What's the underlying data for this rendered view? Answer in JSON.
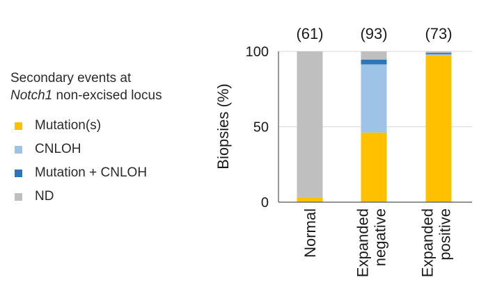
{
  "legend": {
    "title_line1": "Secondary events at",
    "title_gene": "Notch1",
    "title_rest": " non-excised locus",
    "items": [
      {
        "label": "Mutation(s)",
        "color": "#FFC000"
      },
      {
        "label": "CNLOH",
        "color": "#9DC3E6"
      },
      {
        "label": "Mutation + CNLOH",
        "color": "#2E75B6"
      },
      {
        "label": "ND",
        "color": "#BFBFBF"
      }
    ]
  },
  "chart_data": {
    "type": "bar",
    "stacked": true,
    "ylabel": "Biopsies (%)",
    "ylim": [
      0,
      100
    ],
    "yticks": [
      0,
      50,
      100
    ],
    "categories": [
      {
        "lines": [
          "Normal"
        ],
        "count": "(61)"
      },
      {
        "lines": [
          "Expanded",
          "negative"
        ],
        "count": "(93)"
      },
      {
        "lines": [
          "Expanded",
          "positive"
        ],
        "count": "(73)"
      }
    ],
    "series": [
      {
        "name": "Mutation(s)",
        "color": "#FFC000",
        "values": [
          3.3,
          46.2,
          97.3
        ]
      },
      {
        "name": "CNLOH",
        "color": "#9DC3E6",
        "values": [
          0,
          45.2,
          0.8
        ]
      },
      {
        "name": "Mutation + CNLOH",
        "color": "#2E75B6",
        "values": [
          0,
          3.2,
          0.9
        ]
      },
      {
        "name": "ND",
        "color": "#BFBFBF",
        "values": [
          96.7,
          5.4,
          1.0
        ]
      }
    ]
  }
}
